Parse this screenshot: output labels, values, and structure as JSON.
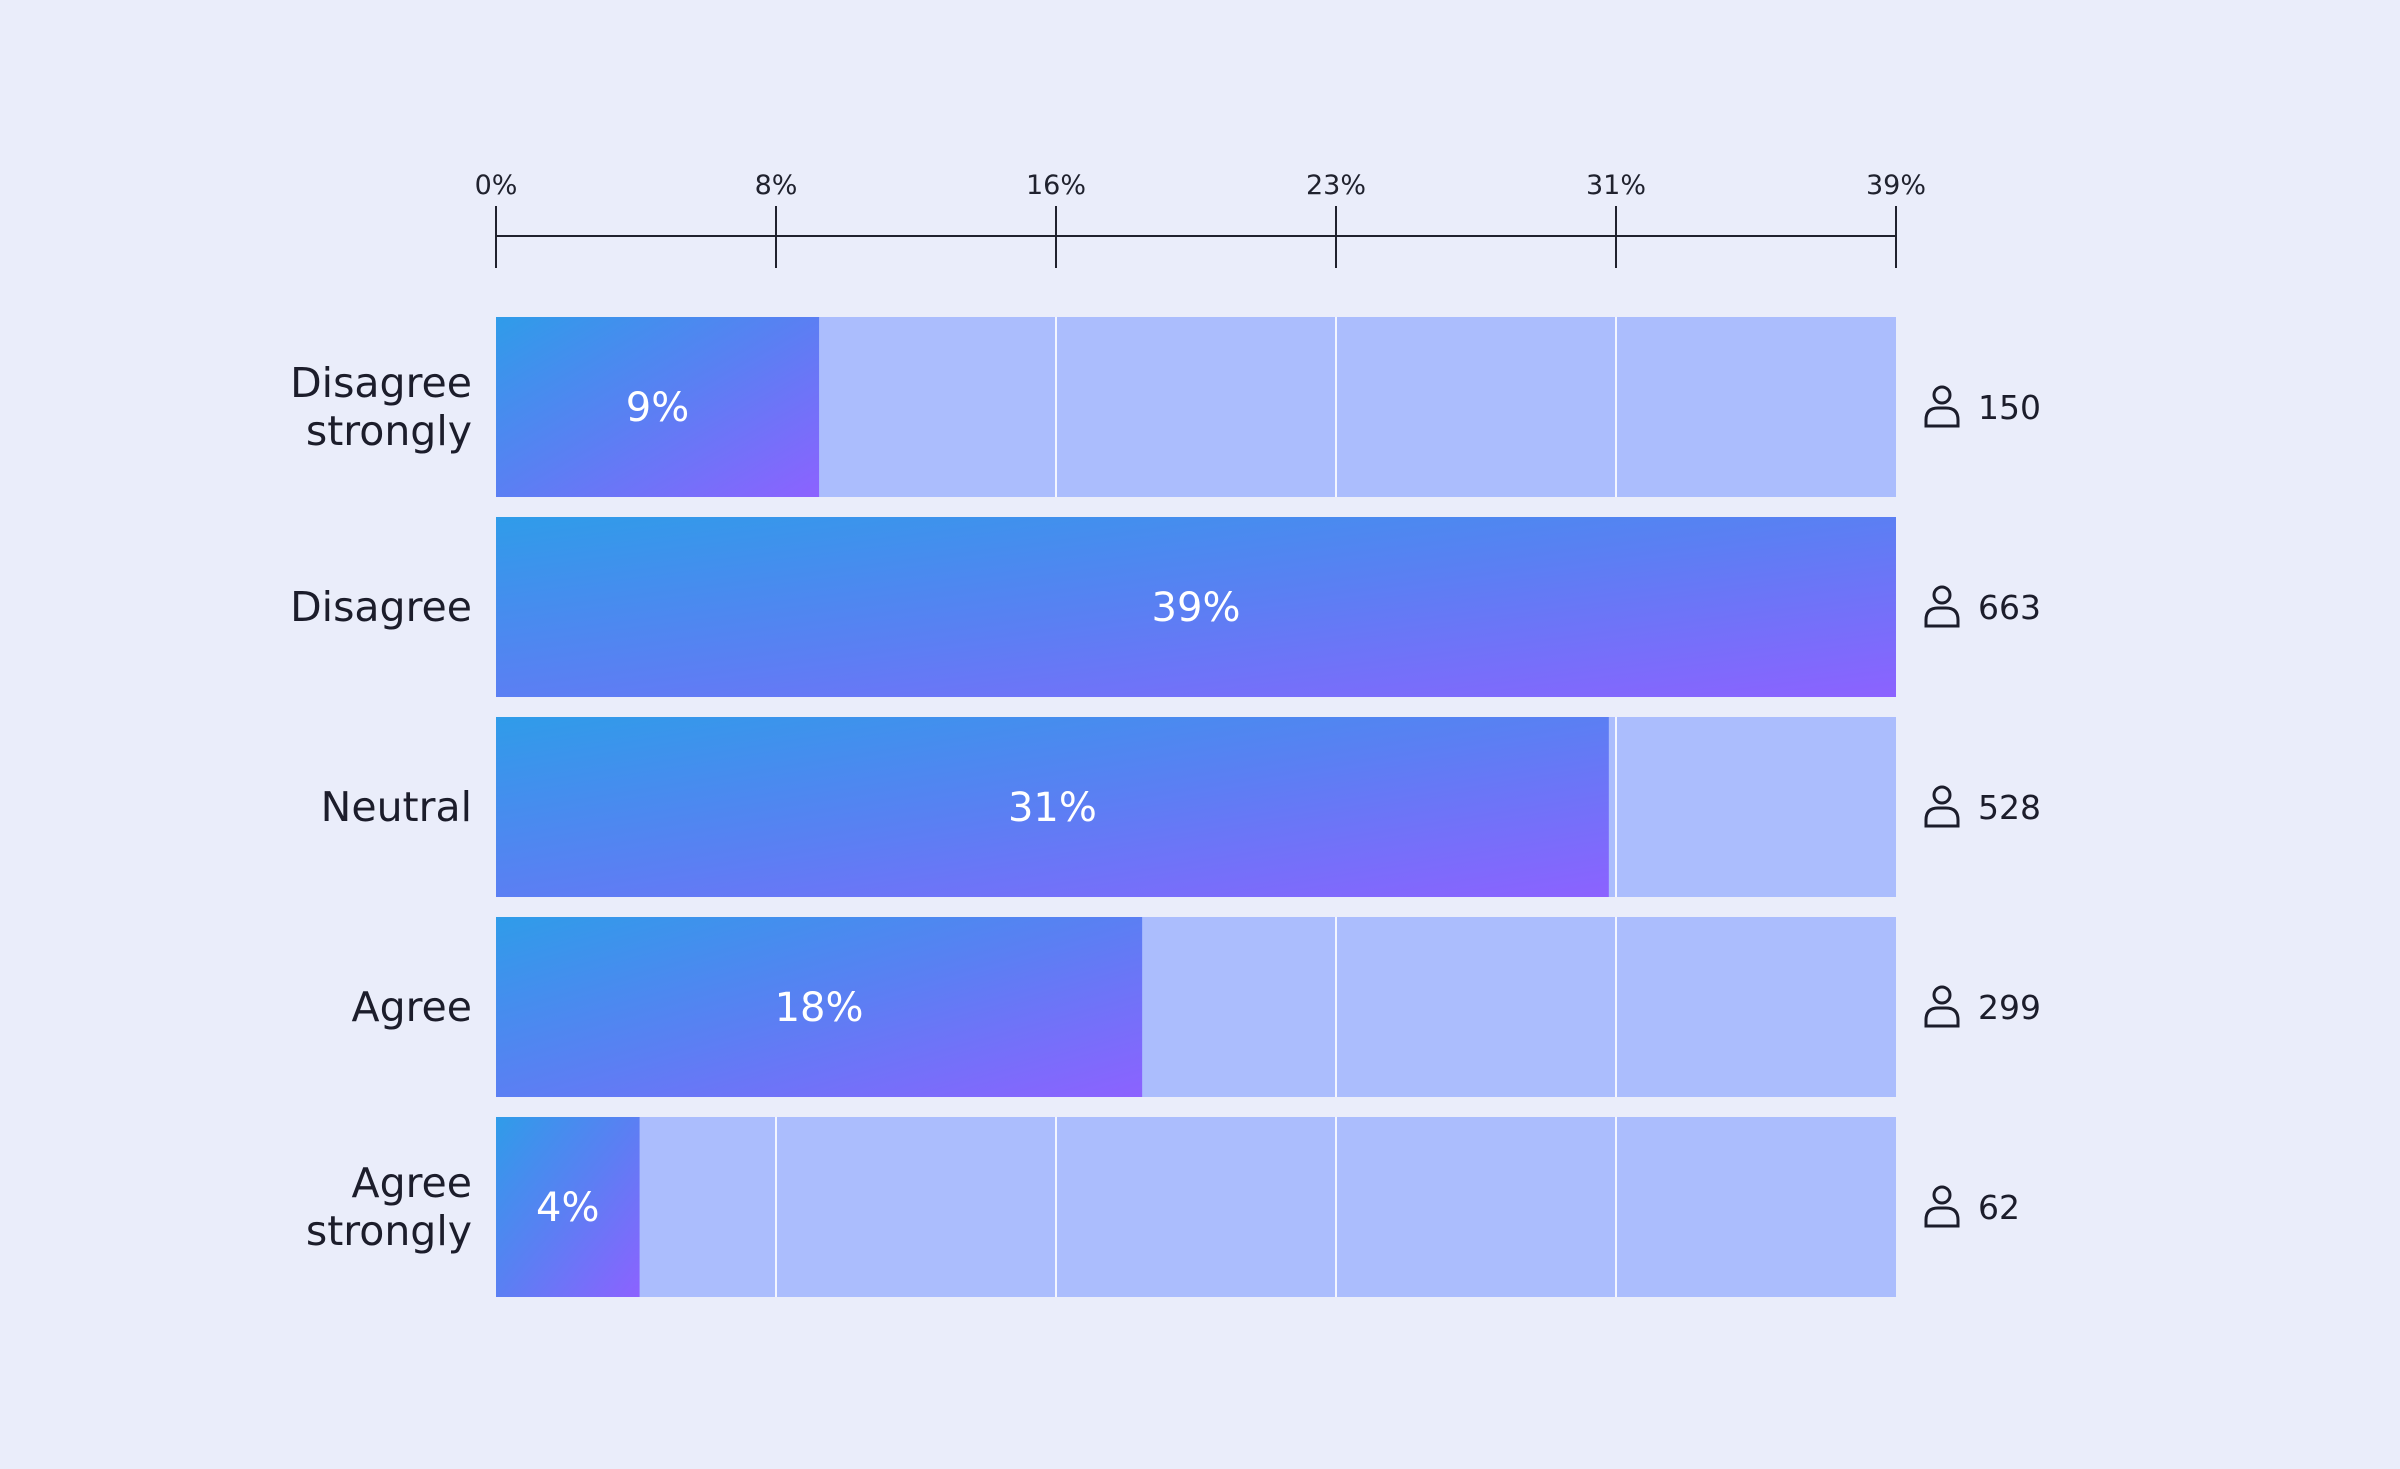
{
  "chart_data": {
    "type": "bar",
    "orientation": "horizontal",
    "categories": [
      "Disagree strongly",
      "Disagree",
      "Neutral",
      "Agree",
      "Agree strongly"
    ],
    "category_lines": [
      [
        "Disagree",
        "strongly"
      ],
      [
        "Disagree"
      ],
      [
        "Neutral"
      ],
      [
        "Agree"
      ],
      [
        "Agree",
        "strongly"
      ]
    ],
    "values": [
      9,
      39,
      31,
      18,
      4
    ],
    "value_labels": [
      "9%",
      "39%",
      "31%",
      "18%",
      "4%"
    ],
    "counts": [
      150,
      663,
      528,
      299,
      62
    ],
    "x_ticks": [
      "0%",
      "8%",
      "16%",
      "23%",
      "31%",
      "39%"
    ],
    "x_tick_values": [
      0,
      7.8,
      15.6,
      23.4,
      31.2,
      39
    ],
    "xlim": [
      0,
      39
    ],
    "axis_position": "top",
    "grid": true,
    "count_icon": "person-icon",
    "title": "",
    "xlabel": "",
    "ylabel": ""
  },
  "colors": {
    "background": "#eaedfa",
    "track": "#abbdfd",
    "bar_gradient_start": "#2f9ce9",
    "bar_gradient_mid": "#5b7ff3",
    "bar_gradient_end": "#8c62ff",
    "axis": "#20222e",
    "text": "#1c1d2b",
    "bar_text": "#ffffff"
  }
}
